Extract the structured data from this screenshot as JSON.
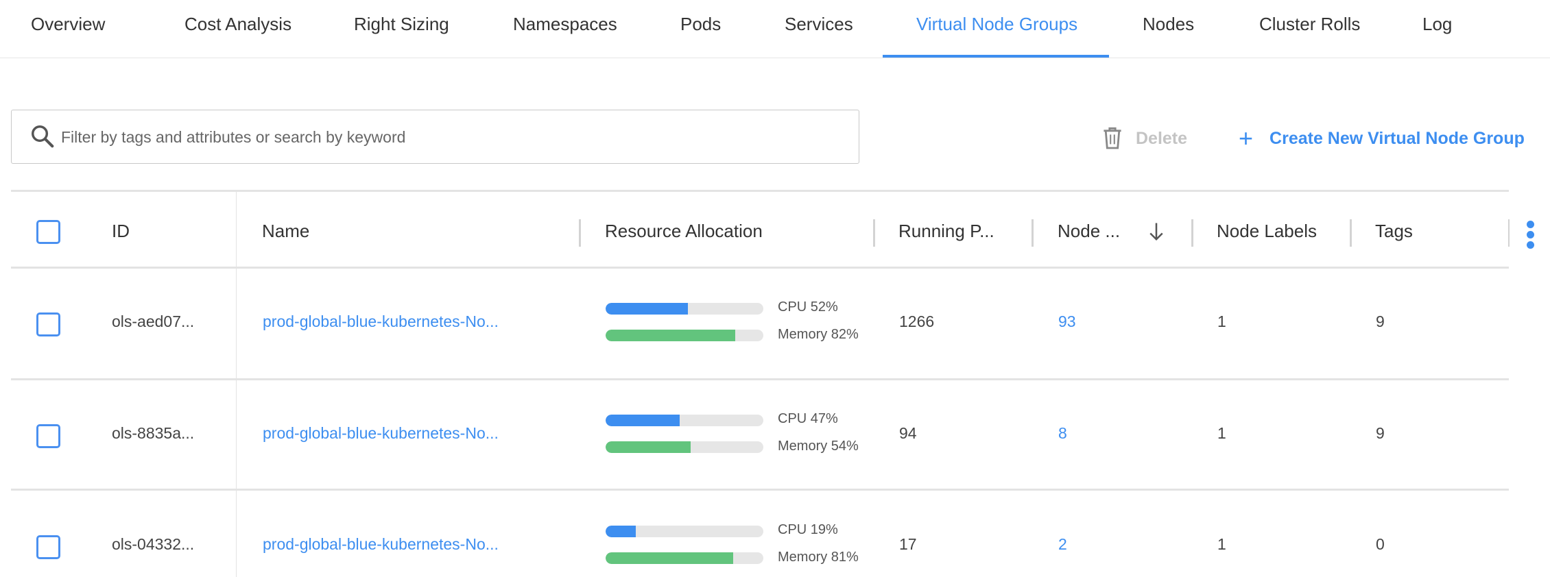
{
  "tabs": [
    {
      "label": "Overview",
      "active": false
    },
    {
      "label": "Cost Analysis",
      "active": false
    },
    {
      "label": "Right Sizing",
      "active": false
    },
    {
      "label": "Namespaces",
      "active": false
    },
    {
      "label": "Pods",
      "active": false
    },
    {
      "label": "Services",
      "active": false
    },
    {
      "label": "Virtual Node Groups",
      "active": true
    },
    {
      "label": "Nodes",
      "active": false
    },
    {
      "label": "Cluster Rolls",
      "active": false
    },
    {
      "label": "Log",
      "active": false
    }
  ],
  "search": {
    "placeholder": "Filter by tags and attributes or search by keyword",
    "value": ""
  },
  "toolbar": {
    "delete_label": "Delete",
    "create_label": "Create New Virtual Node Group"
  },
  "table": {
    "columns": [
      "ID",
      "Name",
      "Resource Allocation",
      "Running P...",
      "Node ...",
      "Node Labels",
      "Tags"
    ],
    "sort": {
      "column": "Node ...",
      "direction": "descending"
    },
    "rows": [
      {
        "id": "ols-aed07...",
        "name": "prod-global-blue-kubernetes-No...",
        "cpu": 52,
        "cpu_label": "CPU 52%",
        "memory": 82,
        "memory_label": "Memory 82%",
        "running_pods": "1266",
        "nodes": "93",
        "node_labels": "1",
        "tags": "9"
      },
      {
        "id": "ols-8835a...",
        "name": "prod-global-blue-kubernetes-No...",
        "cpu": 47,
        "cpu_label": "CPU 47%",
        "memory": 54,
        "memory_label": "Memory 54%",
        "running_pods": "94",
        "nodes": "8",
        "node_labels": "1",
        "tags": "9"
      },
      {
        "id": "ols-04332...",
        "name": "prod-global-blue-kubernetes-No...",
        "cpu": 19,
        "cpu_label": "CPU 19%",
        "memory": 81,
        "memory_label": "Memory 81%",
        "running_pods": "17",
        "nodes": "2",
        "node_labels": "1",
        "tags": "0"
      }
    ]
  },
  "colors": {
    "accent": "#3d8ef0",
    "cpu": "#3d8ef0",
    "memory": "#62c47d",
    "disabled": "#c4c4c4"
  }
}
